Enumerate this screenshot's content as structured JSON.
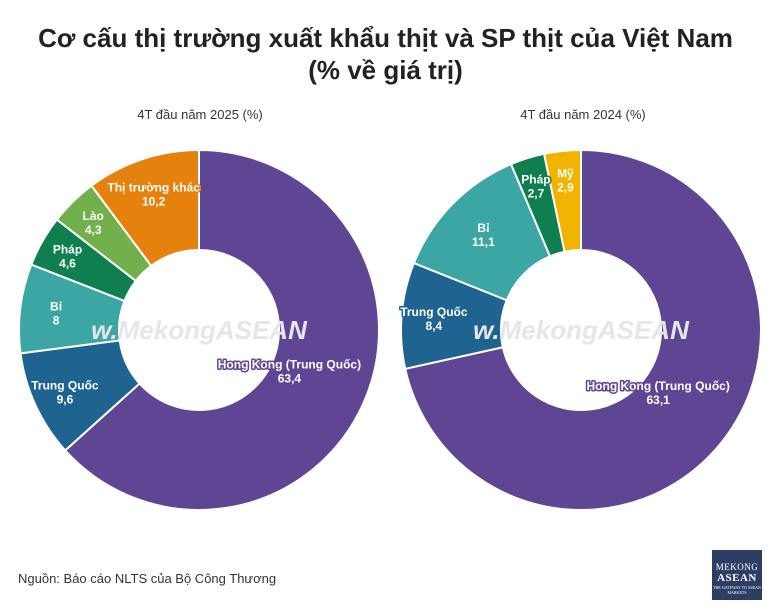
{
  "title_line1": "Cơ cấu thị trường xuất khẩu thịt và SP thịt của Việt Nam",
  "title_line2": "(% về giá trị)",
  "watermark": "w.MekongASEAN",
  "source": "Nguồn: Báo cáo NLTS của Bộ Công Thương",
  "logo": {
    "line1": "MEKONG",
    "line2": "ASEAN",
    "line3": "THE GATEWAY TO ASEAN MARKETS"
  },
  "chart_data": [
    {
      "type": "pie",
      "title": "4T đầu năm 2025 (%)",
      "slices": [
        {
          "name": "Hong Kong (Trung Quốc)",
          "value": 63.4,
          "label": "63,4",
          "color": "#5e4694"
        },
        {
          "name": "Trung Quốc",
          "value": 9.6,
          "label": "9,6",
          "color": "#1f6391"
        },
        {
          "name": "Bỉ",
          "value": 8,
          "label": "8",
          "color": "#3ba6a3"
        },
        {
          "name": "Pháp",
          "value": 4.6,
          "label": "4,6",
          "color": "#0f7f4f"
        },
        {
          "name": "Lào",
          "value": 4.3,
          "label": "4,3",
          "color": "#72b04b"
        },
        {
          "name": "Thị trường khác",
          "value": 10.2,
          "label": "10,2",
          "color": "#e5810d"
        }
      ]
    },
    {
      "type": "pie",
      "title": "4T đầu năm 2024 (%)",
      "slices": [
        {
          "name": "Hong Kong (Trung Quốc)",
          "value": 63.1,
          "label": "63,1",
          "color": "#5e4694"
        },
        {
          "name": "Trung Quốc",
          "value": 8.4,
          "label": "8,4",
          "color": "#1f6391"
        },
        {
          "name": "Bỉ",
          "value": 11.1,
          "label": "11,1",
          "color": "#3ba6a3"
        },
        {
          "name": "Pháp",
          "value": 2.7,
          "label": "2,7",
          "color": "#0f7f4f"
        },
        {
          "name": "Mỹ",
          "value": 2.9,
          "label": "2,9",
          "color": "#f0b400"
        }
      ]
    }
  ]
}
